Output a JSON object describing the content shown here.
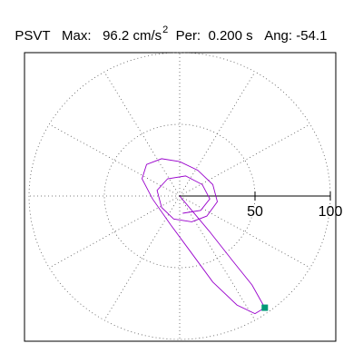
{
  "header": {
    "type_label": "PSVT",
    "max_label": "Max:",
    "max_value": "96.2",
    "max_unit": "cm/s",
    "max_unit_exp": "2",
    "per_label": "Per:",
    "per_value": "0.200 s",
    "ang_label": "Ang:",
    "ang_value": "-54.1"
  },
  "chart_data": {
    "type": "line",
    "title": "PSVT  Max: 96.2 cm/s2  Per: 0.200 s  Ang: -54.1",
    "xlabel": "",
    "ylabel": "",
    "radial_ticks": [
      "50",
      "100"
    ],
    "radial_range": [
      0,
      100
    ],
    "grid": "dotted polar (circles at 50 and 100, radial spokes every 30 degrees)",
    "line_color": "#9900cc",
    "max_marker_color": "#009977",
    "max_point": {
      "x": 56.5,
      "y": -77.9
    },
    "trace_x": [
      0,
      8,
      20,
      35,
      48,
      56.5,
      50,
      38,
      22,
      8,
      -6,
      -18,
      -25,
      -22,
      -12,
      0,
      12,
      22,
      25,
      18,
      8,
      -4,
      -12,
      -15,
      -8,
      4,
      15,
      20,
      14,
      2
    ],
    "trace_y": [
      0,
      -10,
      -25,
      -45,
      -62,
      -77.9,
      -82,
      -76,
      -60,
      -40,
      -20,
      -2,
      12,
      22,
      26,
      24,
      18,
      8,
      -4,
      -14,
      -18,
      -16,
      -8,
      4,
      12,
      14,
      8,
      -2,
      -10,
      -12
    ]
  }
}
